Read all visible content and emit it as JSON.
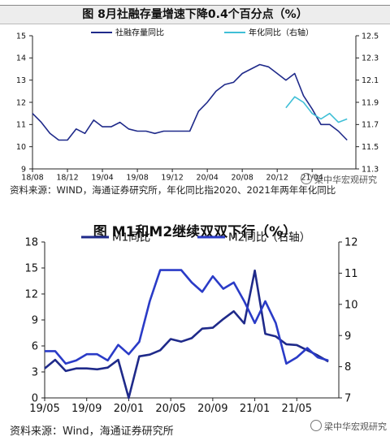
{
  "chart_data": [
    {
      "type": "line",
      "title": "图 8月社融存量增速下降0.4个百分点（%）",
      "x_ticks": [
        "18/08",
        "18/12",
        "19/04",
        "19/08",
        "19/12",
        "20/04",
        "20/08",
        "20/12",
        "21/04"
      ],
      "y_left": {
        "min": 9,
        "max": 15,
        "ticks": [
          "9",
          "10",
          "11",
          "12",
          "13",
          "14",
          "15"
        ]
      },
      "y_right": {
        "min": 11.3,
        "max": 12.5,
        "ticks": [
          "11.3",
          "11.5",
          "11.7",
          "11.9",
          "12.1",
          "12.3",
          "12.5"
        ]
      },
      "series": [
        {
          "name": "社融存量同比",
          "axis": "left",
          "color": "#1f2a8a",
          "x": [
            "2018-08",
            "2018-09",
            "2018-10",
            "2018-11",
            "2018-12",
            "2019-01",
            "2019-02",
            "2019-03",
            "2019-04",
            "2019-05",
            "2019-06",
            "2019-07",
            "2019-08",
            "2019-09",
            "2019-10",
            "2019-11",
            "2019-12",
            "2020-01",
            "2020-02",
            "2020-03",
            "2020-04",
            "2020-05",
            "2020-06",
            "2020-07",
            "2020-08",
            "2020-09",
            "2020-10",
            "2020-11",
            "2020-12",
            "2021-01",
            "2021-02",
            "2021-03",
            "2021-04",
            "2021-05",
            "2021-06",
            "2021-07",
            "2021-08"
          ],
          "values": [
            11.5,
            11.1,
            10.6,
            10.3,
            10.3,
            10.8,
            10.6,
            11.2,
            10.9,
            10.9,
            11.1,
            10.8,
            10.7,
            10.7,
            10.6,
            10.7,
            10.7,
            10.7,
            10.7,
            11.6,
            12.0,
            12.5,
            12.8,
            12.9,
            13.3,
            13.5,
            13.7,
            13.6,
            13.3,
            13.0,
            13.3,
            12.3,
            11.7,
            11.0,
            11.0,
            10.7,
            10.3
          ]
        },
        {
          "name": "年化同比（右轴）",
          "axis": "right",
          "color": "#3fbfd6",
          "x": [
            "2021-01",
            "2021-02",
            "2021-03",
            "2021-04",
            "2021-05",
            "2021-06",
            "2021-07",
            "2021-08"
          ],
          "values": [
            11.85,
            11.95,
            11.9,
            11.8,
            11.75,
            11.8,
            11.72,
            11.75
          ]
        }
      ],
      "source": "资料来源：WIND，海通证券研究所，年化同比指2020、2021年两年年化同比",
      "watermark": "梁中华宏观研究"
    },
    {
      "type": "line",
      "title": "图 M1和M2继续双双下行（%）",
      "x_ticks": [
        "19/05",
        "19/09",
        "20/01",
        "20/05",
        "20/09",
        "21/01",
        "21/05"
      ],
      "y_left": {
        "min": 0,
        "max": 18,
        "ticks": [
          "0",
          "3",
          "6",
          "9",
          "12",
          "15",
          "18"
        ]
      },
      "y_right": {
        "min": 7,
        "max": 12,
        "ticks": [
          "7",
          "8",
          "9",
          "10",
          "11",
          "12"
        ]
      },
      "series": [
        {
          "name": "M1同比",
          "axis": "left",
          "color": "#1f2a8a",
          "x": [
            "2019-05",
            "2019-06",
            "2019-07",
            "2019-08",
            "2019-09",
            "2019-10",
            "2019-11",
            "2019-12",
            "2020-01",
            "2020-02",
            "2020-03",
            "2020-04",
            "2020-05",
            "2020-06",
            "2020-07",
            "2020-08",
            "2020-09",
            "2020-10",
            "2020-11",
            "2020-12",
            "2021-01",
            "2021-02",
            "2021-03",
            "2021-04",
            "2021-05",
            "2021-06",
            "2021-07",
            "2021-08"
          ],
          "values": [
            3.4,
            4.4,
            3.1,
            3.4,
            3.4,
            3.3,
            3.5,
            4.4,
            0.0,
            4.8,
            5.0,
            5.5,
            6.8,
            6.5,
            6.9,
            8.0,
            8.1,
            9.1,
            10.0,
            8.6,
            14.7,
            7.4,
            7.1,
            6.2,
            6.1,
            5.5,
            4.9,
            4.2
          ]
        },
        {
          "name": "M2同比（右轴）",
          "axis": "right",
          "color": "#2a3bc7",
          "x": [
            "2019-05",
            "2019-06",
            "2019-07",
            "2019-08",
            "2019-09",
            "2019-10",
            "2019-11",
            "2019-12",
            "2020-01",
            "2020-02",
            "2020-03",
            "2020-04",
            "2020-05",
            "2020-06",
            "2020-07",
            "2020-08",
            "2020-09",
            "2020-10",
            "2020-11",
            "2020-12",
            "2021-01",
            "2021-02",
            "2021-03",
            "2021-04",
            "2021-05",
            "2021-06",
            "2021-07",
            "2021-08"
          ],
          "values": [
            8.5,
            8.5,
            8.1,
            8.2,
            8.4,
            8.4,
            8.2,
            8.7,
            8.4,
            8.8,
            10.1,
            11.1,
            11.1,
            11.1,
            10.7,
            10.4,
            10.9,
            10.5,
            10.7,
            10.1,
            9.4,
            10.1,
            9.4,
            8.1,
            8.3,
            8.6,
            8.3,
            8.2
          ]
        }
      ],
      "source": "资料来源：Wind，海通证券研究所",
      "watermark": "梁中华宏观研究"
    }
  ]
}
